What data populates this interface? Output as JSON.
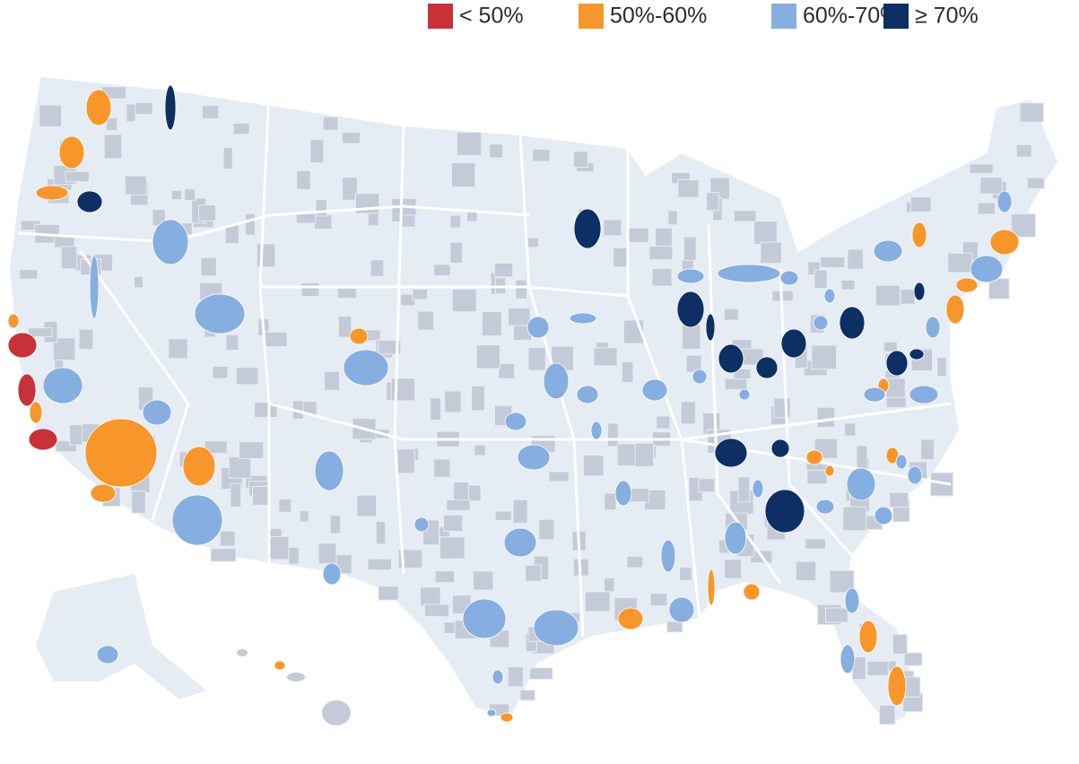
{
  "legend": {
    "items": [
      {
        "label": "< 50%",
        "color": "#c8313a"
      },
      {
        "label": "50%-60%",
        "color": "#f7962b"
      },
      {
        "label": "60%-70%",
        "color": "#86aee0"
      },
      {
        "label": "≥ 70%",
        "color": "#0d2f63"
      }
    ]
  }
}
